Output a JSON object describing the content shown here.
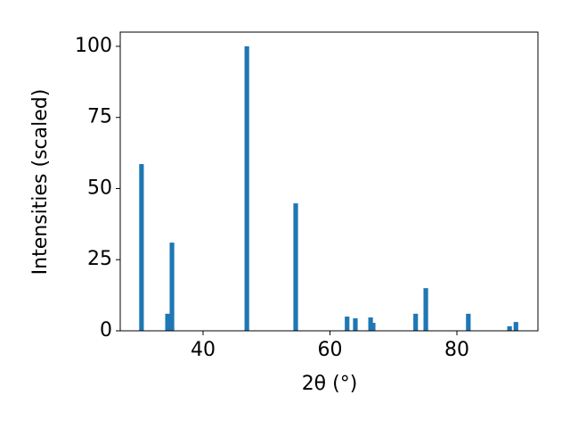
{
  "chart_data": {
    "type": "bar",
    "xlabel": "2θ (°)",
    "ylabel": "Intensities (scaled)",
    "x": [
      30.3,
      34.4,
      35.1,
      46.9,
      54.6,
      62.7,
      64.0,
      66.4,
      66.8,
      73.5,
      75.1,
      81.8,
      88.3,
      89.3
    ],
    "values": [
      58.6,
      6,
      31,
      100,
      44.8,
      5,
      4.4,
      4.7,
      2.8,
      6,
      15,
      6,
      1.6,
      3.1
    ],
    "color": "#1f77b4",
    "xlim": [
      26.95,
      92.77
    ],
    "xticks": [
      40,
      60,
      80
    ],
    "ylim": [
      0,
      105
    ],
    "yticks": [
      0,
      25,
      50,
      75,
      100
    ]
  }
}
